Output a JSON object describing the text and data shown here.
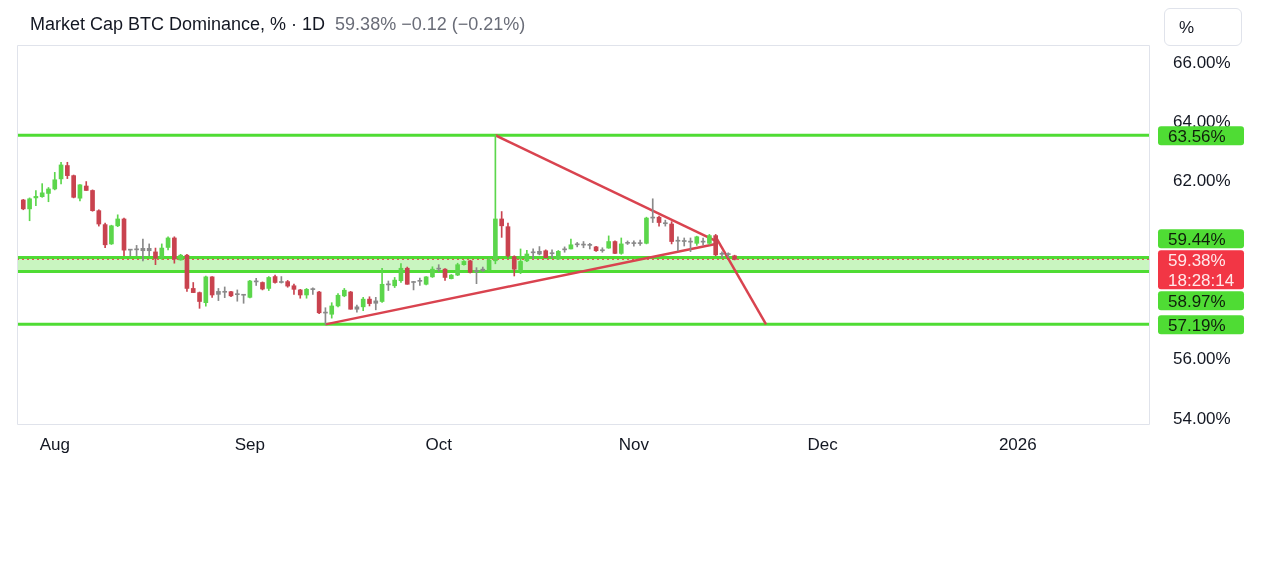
{
  "chart_data": {
    "type": "candlestick",
    "title": "Market Cap BTC Dominance, % · 1D",
    "subtitle": "59.38%  −0.12 (−0.21%)",
    "ylabel": "%",
    "x": [
      "2025-07-27",
      "2025-07-28",
      "2025-07-29",
      "2025-07-30",
      "2025-07-31",
      "2025-08-01",
      "2025-08-02",
      "2025-08-03",
      "2025-08-04",
      "2025-08-05",
      "2025-08-06",
      "2025-08-07",
      "2025-08-08",
      "2025-08-09",
      "2025-08-10",
      "2025-08-11",
      "2025-08-12",
      "2025-08-13",
      "2025-08-14",
      "2025-08-15",
      "2025-08-16",
      "2025-08-17",
      "2025-08-18",
      "2025-08-19",
      "2025-08-20",
      "2025-08-21",
      "2025-08-22",
      "2025-08-23",
      "2025-08-24",
      "2025-08-25",
      "2025-08-26",
      "2025-08-27",
      "2025-08-28",
      "2025-08-29",
      "2025-08-30",
      "2025-08-31",
      "2025-09-01",
      "2025-09-02",
      "2025-09-03",
      "2025-09-04",
      "2025-09-05",
      "2025-09-06",
      "2025-09-07",
      "2025-09-08",
      "2025-09-09",
      "2025-09-10",
      "2025-09-11",
      "2025-09-12",
      "2025-09-13",
      "2025-09-14",
      "2025-09-15",
      "2025-09-16",
      "2025-09-17",
      "2025-09-18",
      "2025-09-19",
      "2025-09-20",
      "2025-09-21",
      "2025-09-22",
      "2025-09-23",
      "2025-09-24",
      "2025-09-25",
      "2025-09-26",
      "2025-09-27",
      "2025-09-28",
      "2025-09-29",
      "2025-09-30",
      "2025-10-01",
      "2025-10-02",
      "2025-10-03",
      "2025-10-04",
      "2025-10-05",
      "2025-10-06",
      "2025-10-07",
      "2025-10-08",
      "2025-10-09",
      "2025-10-10",
      "2025-10-11",
      "2025-10-12",
      "2025-10-13",
      "2025-10-14",
      "2025-10-15",
      "2025-10-16",
      "2025-10-17",
      "2025-10-18",
      "2025-10-19",
      "2025-10-20",
      "2025-10-21",
      "2025-10-22",
      "2025-10-23",
      "2025-10-24",
      "2025-10-25",
      "2025-10-26",
      "2025-10-27",
      "2025-10-28",
      "2025-10-29",
      "2025-10-30",
      "2025-10-31",
      "2025-11-01",
      "2025-11-02",
      "2025-11-03",
      "2025-11-04",
      "2025-11-05",
      "2025-11-06",
      "2025-11-07",
      "2025-11-08",
      "2025-11-09",
      "2025-11-10",
      "2025-11-11",
      "2025-11-12",
      "2025-11-13",
      "2025-11-14",
      "2025-11-15",
      "2025-11-16",
      "2025-11-17"
    ],
    "ohlc": [
      [
        61.38,
        61.4,
        61.05,
        61.08
      ],
      [
        61.08,
        61.45,
        60.68,
        61.42
      ],
      [
        61.45,
        61.7,
        61.19,
        61.5
      ],
      [
        61.49,
        61.93,
        61.47,
        61.62
      ],
      [
        61.6,
        61.8,
        61.32,
        61.75
      ],
      [
        61.75,
        62.31,
        61.72,
        62.06
      ],
      [
        62.09,
        62.65,
        61.92,
        62.56
      ],
      [
        62.54,
        62.65,
        62.1,
        62.2
      ],
      [
        62.2,
        62.22,
        61.45,
        61.47
      ],
      [
        61.44,
        61.9,
        61.35,
        61.89
      ],
      [
        61.85,
        62.0,
        61.7,
        61.7
      ],
      [
        61.7,
        61.72,
        61.0,
        61.02
      ],
      [
        61.02,
        61.05,
        60.5,
        60.57
      ],
      [
        60.55,
        60.6,
        59.77,
        59.87
      ],
      [
        59.9,
        60.53,
        59.88,
        60.51
      ],
      [
        60.51,
        60.88,
        60.48,
        60.74
      ],
      [
        60.74,
        60.77,
        59.5,
        59.69
      ],
      [
        59.69,
        59.7,
        59.5,
        59.69
      ],
      [
        59.7,
        59.85,
        59.5,
        59.72
      ],
      [
        59.67,
        60.06,
        59.33,
        59.75
      ],
      [
        59.75,
        59.9,
        59.5,
        59.67
      ],
      [
        59.63,
        59.76,
        59.2,
        59.42
      ],
      [
        59.44,
        59.9,
        59.38,
        59.76
      ],
      [
        59.78,
        60.14,
        59.7,
        60.1
      ],
      [
        60.1,
        60.14,
        59.25,
        59.39
      ],
      [
        59.36,
        59.55,
        59.35,
        59.52
      ],
      [
        59.52,
        59.55,
        58.3,
        58.4
      ],
      [
        58.4,
        58.6,
        58.26,
        58.26
      ],
      [
        58.26,
        58.28,
        57.73,
        57.96
      ],
      [
        57.92,
        58.82,
        57.8,
        58.79
      ],
      [
        58.79,
        58.8,
        58.1,
        58.18
      ],
      [
        58.2,
        58.4,
        57.99,
        58.3
      ],
      [
        58.28,
        58.45,
        58.09,
        58.27
      ],
      [
        58.29,
        58.3,
        58.12,
        58.15
      ],
      [
        58.2,
        58.35,
        57.97,
        58.19
      ],
      [
        58.18,
        58.2,
        57.9,
        58.17
      ],
      [
        58.1,
        58.67,
        58.08,
        58.65
      ],
      [
        58.63,
        58.74,
        58.5,
        58.62
      ],
      [
        58.6,
        58.62,
        58.35,
        58.38
      ],
      [
        58.4,
        58.8,
        58.33,
        58.77
      ],
      [
        58.8,
        58.85,
        58.58,
        58.6
      ],
      [
        58.6,
        58.8,
        58.58,
        58.62
      ],
      [
        58.63,
        58.67,
        58.44,
        58.48
      ],
      [
        58.49,
        58.55,
        58.2,
        58.37
      ],
      [
        58.35,
        58.37,
        58.07,
        58.18
      ],
      [
        58.18,
        58.4,
        58.07,
        58.37
      ],
      [
        58.37,
        58.42,
        58.2,
        58.36
      ],
      [
        58.28,
        58.3,
        57.55,
        57.58
      ],
      [
        57.58,
        57.75,
        57.19,
        57.57
      ],
      [
        57.53,
        57.92,
        57.4,
        57.81
      ],
      [
        57.81,
        58.23,
        57.78,
        58.17
      ],
      [
        58.15,
        58.4,
        58.12,
        58.34
      ],
      [
        58.28,
        58.3,
        57.7,
        57.7
      ],
      [
        57.7,
        57.84,
        57.6,
        57.78
      ],
      [
        57.78,
        58.1,
        57.65,
        58.04
      ],
      [
        58.04,
        58.12,
        57.81,
        57.89
      ],
      [
        57.9,
        58.1,
        57.68,
        57.98
      ],
      [
        57.96,
        59.08,
        57.93,
        58.54
      ],
      [
        58.53,
        58.65,
        58.33,
        58.52
      ],
      [
        58.49,
        58.77,
        58.43,
        58.68
      ],
      [
        58.66,
        59.24,
        58.6,
        59.08
      ],
      [
        59.08,
        59.12,
        58.54,
        58.54
      ],
      [
        58.6,
        58.64,
        58.35,
        58.62
      ],
      [
        58.65,
        58.75,
        58.5,
        58.64
      ],
      [
        58.54,
        58.8,
        58.52,
        58.79
      ],
      [
        58.79,
        59.13,
        58.77,
        59.05
      ],
      [
        59.05,
        59.2,
        58.97,
        59.06
      ],
      [
        59.05,
        59.07,
        58.67,
        58.77
      ],
      [
        58.73,
        58.87,
        58.72,
        58.85
      ],
      [
        58.85,
        59.25,
        58.83,
        59.2
      ],
      [
        59.2,
        59.34,
        59.18,
        59.31
      ],
      [
        59.33,
        59.35,
        58.92,
        58.94
      ],
      [
        58.97,
        59.1,
        58.56,
        59.0
      ],
      [
        59.0,
        59.12,
        58.97,
        59.05
      ],
      [
        59.02,
        59.42,
        59.0,
        59.36
      ],
      [
        59.33,
        63.56,
        59.23,
        60.74
      ],
      [
        60.74,
        60.99,
        60.12,
        60.51
      ],
      [
        60.48,
        60.6,
        59.45,
        59.5
      ],
      [
        59.47,
        59.5,
        58.82,
        59.05
      ],
      [
        58.99,
        59.73,
        58.9,
        59.31
      ],
      [
        59.33,
        59.68,
        59.3,
        59.56
      ],
      [
        59.6,
        59.73,
        59.4,
        59.62
      ],
      [
        59.56,
        59.81,
        59.53,
        59.65
      ],
      [
        59.67,
        59.7,
        59.43,
        59.44
      ],
      [
        59.57,
        59.7,
        59.43,
        59.59
      ],
      [
        59.39,
        59.68,
        59.37,
        59.65
      ],
      [
        59.7,
        59.8,
        59.62,
        59.72
      ],
      [
        59.73,
        60.06,
        59.73,
        59.87
      ],
      [
        59.87,
        59.95,
        59.8,
        59.88
      ],
      [
        59.88,
        59.98,
        59.77,
        59.86
      ],
      [
        59.86,
        59.92,
        59.73,
        59.85
      ],
      [
        59.8,
        59.82,
        59.65,
        59.67
      ],
      [
        59.67,
        59.77,
        59.62,
        59.7
      ],
      [
        59.76,
        60.17,
        59.75,
        59.98
      ],
      [
        59.98,
        60.0,
        59.57,
        59.58
      ],
      [
        59.58,
        60.1,
        59.55,
        59.9
      ],
      [
        59.92,
        60.0,
        59.88,
        59.93
      ],
      [
        59.93,
        60.0,
        59.82,
        59.91
      ],
      [
        59.91,
        60.03,
        59.85,
        59.93
      ],
      [
        59.92,
        60.8,
        59.9,
        60.77
      ],
      [
        60.77,
        61.42,
        60.62,
        60.8
      ],
      [
        60.8,
        60.84,
        60.5,
        60.62
      ],
      [
        60.6,
        60.7,
        60.5,
        60.58
      ],
      [
        60.57,
        60.65,
        59.9,
        59.98
      ],
      [
        59.99,
        60.14,
        59.66,
        60.0
      ],
      [
        60.0,
        60.1,
        59.83,
        59.98
      ],
      [
        59.98,
        60.1,
        59.64,
        59.96
      ],
      [
        59.92,
        60.16,
        59.85,
        60.14
      ],
      [
        59.96,
        60.1,
        59.86,
        59.97
      ],
      [
        59.92,
        60.22,
        59.88,
        60.18
      ],
      [
        60.18,
        60.22,
        59.5,
        59.53
      ],
      [
        59.55,
        59.63,
        59.44,
        59.56
      ],
      [
        59.55,
        59.6,
        59.45,
        59.54
      ],
      [
        59.5,
        59.52,
        59.36,
        59.38
      ]
    ],
    "colors": [
      "#c9434f",
      "#5cd64c",
      "#5cd64c",
      "#5cd64c",
      "#5cd64c",
      "#5cd64c",
      "#5cd64c",
      "#c9434f",
      "#c9434f",
      "#5cd64c",
      "#c9434f",
      "#c9434f",
      "#c9434f",
      "#c9434f",
      "#5cd64c",
      "#5cd64c",
      "#c9434f",
      "#8a8a8a",
      "#8a8a8a",
      "#8a8a8a",
      "#8a8a8a",
      "#c9434f",
      "#5cd64c",
      "#5cd64c",
      "#c9434f",
      "#5cd64c",
      "#c9434f",
      "#c9434f",
      "#c9434f",
      "#5cd64c",
      "#c9434f",
      "#8a8a8a",
      "#8a8a8a",
      "#c9434f",
      "#8a8a8a",
      "#8a8a8a",
      "#5cd64c",
      "#8a8a8a",
      "#c9434f",
      "#5cd64c",
      "#c9434f",
      "#8a8a8a",
      "#c9434f",
      "#c9434f",
      "#c9434f",
      "#5cd64c",
      "#8a8a8a",
      "#c9434f",
      "#8a8a8a",
      "#5cd64c",
      "#5cd64c",
      "#5cd64c",
      "#c9434f",
      "#8a8a8a",
      "#5cd64c",
      "#c9434f",
      "#8a8a8a",
      "#5cd64c",
      "#8a8a8a",
      "#5cd64c",
      "#5cd64c",
      "#c9434f",
      "#8a8a8a",
      "#8a8a8a",
      "#5cd64c",
      "#5cd64c",
      "#8a8a8a",
      "#c9434f",
      "#5cd64c",
      "#5cd64c",
      "#5cd64c",
      "#c9434f",
      "#8a8a8a",
      "#8a8a8a",
      "#5cd64c",
      "#5cd64c",
      "#c9434f",
      "#c9434f",
      "#c9434f",
      "#5cd64c",
      "#5cd64c",
      "#8a8a8a",
      "#8a8a8a",
      "#c9434f",
      "#8a8a8a",
      "#5cd64c",
      "#8a8a8a",
      "#5cd64c",
      "#8a8a8a",
      "#8a8a8a",
      "#8a8a8a",
      "#c9434f",
      "#8a8a8a",
      "#5cd64c",
      "#c9434f",
      "#5cd64c",
      "#8a8a8a",
      "#8a8a8a",
      "#8a8a8a",
      "#5cd64c",
      "#8a8a8a",
      "#c9434f",
      "#8a8a8a",
      "#c9434f",
      "#8a8a8a",
      "#8a8a8a",
      "#8a8a8a",
      "#5cd64c",
      "#8a8a8a",
      "#5cd64c",
      "#c9434f",
      "#8a8a8a",
      "#8a8a8a",
      "#c9434f"
    ],
    "series": [
      {
        "type": "line",
        "color": "#d9434f",
        "x": [
          "2025-10-10",
          "2025-11-14"
        ],
        "values": [
          63.56,
          60.0
        ]
      },
      {
        "type": "line",
        "color": "#d9434f",
        "x": [
          "2025-09-13",
          "2025-11-14"
        ],
        "values": [
          57.19,
          59.9
        ]
      },
      {
        "type": "line",
        "color": "#d9434f",
        "x": [
          "2025-11-14",
          "2025-11-22"
        ],
        "values": [
          60.14,
          57.19
        ]
      }
    ],
    "xlim": [
      "2025-07-26",
      "2026-01-22"
    ],
    "xticks": [
      {
        "value": "2025-08-01",
        "label": "Aug"
      },
      {
        "value": "2025-09-01",
        "label": "Sep"
      },
      {
        "value": "2025-10-01",
        "label": "Oct"
      },
      {
        "value": "2025-11-01",
        "label": "Nov"
      },
      {
        "value": "2025-12-01",
        "label": "Dec"
      },
      {
        "value": "2026-01-01",
        "label": "2026"
      }
    ],
    "ylim": [
      53.8,
      66.6
    ],
    "yticks": [
      {
        "value": 54,
        "label": "54.00%"
      },
      {
        "value": 56,
        "label": "56.00%"
      },
      {
        "value": 62,
        "label": "62.00%"
      },
      {
        "value": 64,
        "label": "64.00%"
      },
      {
        "value": 66,
        "label": "66.00%"
      }
    ],
    "bands": [
      {
        "axis": "y",
        "from": 58.97,
        "to": 59.44,
        "color": "#c9f5c0"
      }
    ],
    "ref_lines": [
      {
        "axis": "y",
        "value": 63.56,
        "label": "63.56%",
        "color": "#4fdc34"
      },
      {
        "axis": "y",
        "value": 59.44,
        "label": "59.44%",
        "color": "#4fdc34"
      },
      {
        "axis": "y",
        "value": 59.38,
        "label": "59.38%",
        "color": "#f23645",
        "line_style": "dotted"
      },
      {
        "axis": "y",
        "value": 58.97,
        "label": "58.97%",
        "color": "#4fdc34"
      },
      {
        "axis": "y",
        "value": 57.19,
        "label": "57.19%",
        "color": "#4fdc34"
      }
    ],
    "annotations": [
      "18:28:14"
    ],
    "legend": false,
    "grid": false
  }
}
